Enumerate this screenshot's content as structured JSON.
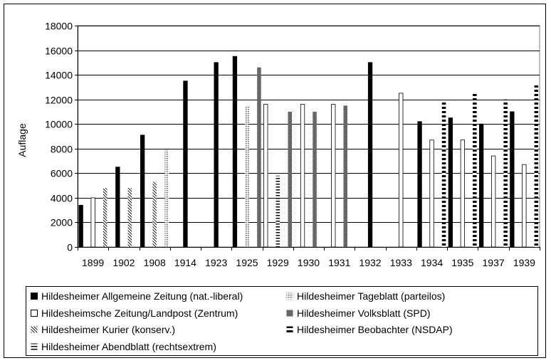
{
  "chart_data": {
    "type": "bar",
    "ylabel": "Auflage",
    "xlabel": "",
    "ylim": [
      0,
      18000
    ],
    "yticks": [
      0,
      2000,
      4000,
      6000,
      8000,
      10000,
      12000,
      14000,
      16000,
      18000
    ],
    "grid": "horizontal",
    "legend_placement": "bottom",
    "categories": [
      "1899",
      "1902",
      "1908",
      "1914",
      "1923",
      "1925",
      "1929",
      "1930",
      "1931",
      "1932",
      "1933",
      "1934",
      "1935",
      "1937",
      "1939"
    ],
    "series": [
      {
        "name": "Hildesheimer Allgemeine Zeitung (nat.-liberal)",
        "pattern": "solid",
        "values": [
          3400,
          6500,
          9100,
          13500,
          15000,
          15500,
          null,
          null,
          null,
          15000,
          null,
          10200,
          10500,
          10000,
          11000
        ]
      },
      {
        "name": "Hildesheimsche Zeitung/Landpost (Zentrum)",
        "pattern": "hollow",
        "values": [
          4000,
          null,
          null,
          null,
          null,
          null,
          11600,
          11600,
          11600,
          null,
          12500,
          8700,
          8700,
          7400,
          6700
        ]
      },
      {
        "name": "Hildesheimer Kurier (konserv.)",
        "pattern": "diagonal",
        "values": [
          4800,
          4800,
          5300,
          null,
          null,
          null,
          null,
          null,
          null,
          null,
          null,
          null,
          null,
          null,
          null
        ]
      },
      {
        "name": "Hildesheimer Abendblatt (rechtsextrem)",
        "pattern": "horizontal-lines",
        "values": [
          null,
          null,
          null,
          null,
          null,
          null,
          5800,
          null,
          null,
          null,
          null,
          null,
          null,
          null,
          null
        ]
      },
      {
        "name": "Hildesheimer Tageblatt (parteilos)",
        "pattern": "dotted",
        "values": [
          null,
          null,
          7900,
          null,
          null,
          11400,
          null,
          null,
          null,
          null,
          null,
          null,
          null,
          null,
          null
        ]
      },
      {
        "name": "Hildesheimer Volksblatt (SPD)",
        "pattern": "checker",
        "values": [
          null,
          null,
          null,
          null,
          null,
          14600,
          11000,
          11000,
          11500,
          null,
          null,
          null,
          null,
          null,
          null
        ]
      },
      {
        "name": "Hildesheimer Beobachter (NSDAP)",
        "pattern": "thick-dashes",
        "values": [
          null,
          null,
          null,
          null,
          null,
          null,
          null,
          null,
          null,
          null,
          null,
          11800,
          12500,
          12000,
          13200
        ]
      }
    ],
    "legend_order": [
      0,
      4,
      1,
      5,
      2,
      6,
      3
    ]
  }
}
